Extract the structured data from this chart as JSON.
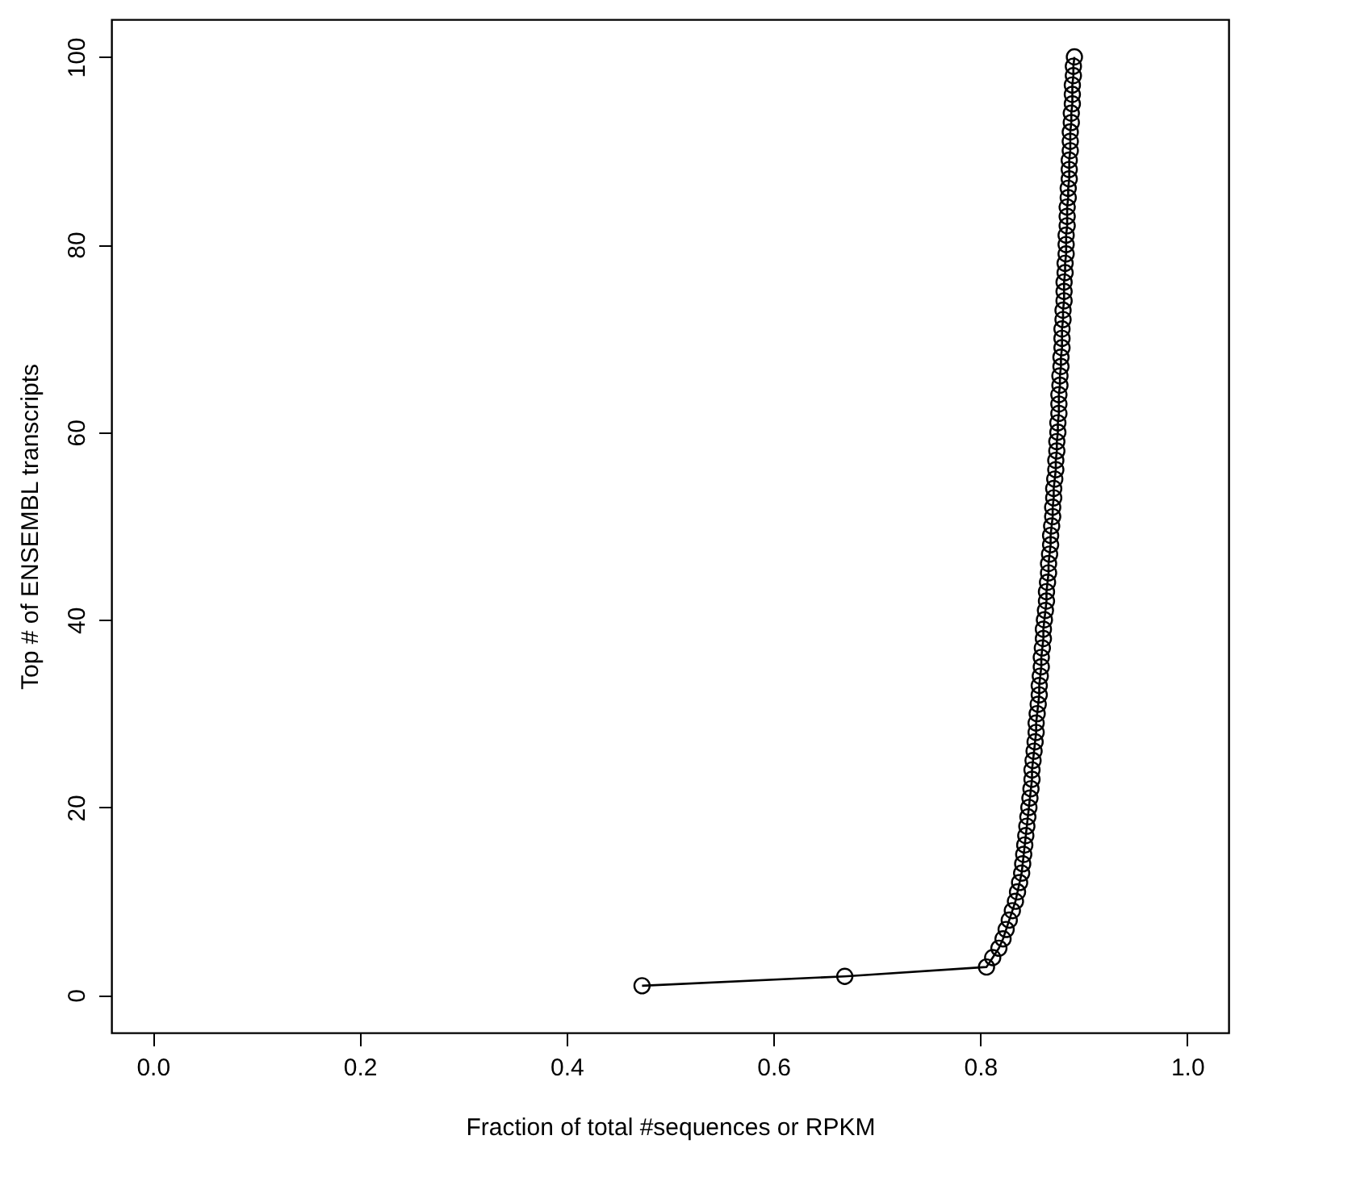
{
  "chart_data": {
    "type": "line",
    "xlabel": "Fraction of total #sequences or RPKM",
    "ylabel": "Top # of ENSEMBL transcripts",
    "marker": "circle",
    "line_style": "solid",
    "xlim": [
      -0.04,
      1.04
    ],
    "xticks": [
      {
        "value": 0,
        "label": "0.0"
      },
      {
        "value": 0.2,
        "label": "0.2"
      },
      {
        "value": 0.4,
        "label": "0.4"
      },
      {
        "value": 0.6,
        "label": "0.6"
      },
      {
        "value": 0.8,
        "label": "0.8"
      },
      {
        "value": 1,
        "label": "1.0"
      }
    ],
    "ylim": [
      -4,
      104
    ],
    "yticks": [
      0,
      20,
      40,
      60,
      80,
      100
    ],
    "series": [
      {
        "color": "#000000",
        "x": [
          0.473,
          0.669,
          0.806,
          0.812,
          0.818,
          0.822,
          0.825,
          0.828,
          0.831,
          0.834,
          0.836,
          0.838,
          0.84,
          0.841,
          0.842,
          0.843,
          0.844,
          0.845,
          0.846,
          0.847,
          0.848,
          0.849,
          0.85,
          0.85,
          0.851,
          0.852,
          0.853,
          0.854,
          0.854,
          0.855,
          0.856,
          0.857,
          0.857,
          0.858,
          0.859,
          0.859,
          0.86,
          0.861,
          0.861,
          0.862,
          0.863,
          0.864,
          0.864,
          0.865,
          0.866,
          0.866,
          0.867,
          0.868,
          0.868,
          0.869,
          0.87,
          0.87,
          0.871,
          0.871,
          0.872,
          0.873,
          0.873,
          0.874,
          0.874,
          0.875,
          0.875,
          0.876,
          0.876,
          0.876,
          0.877,
          0.877,
          0.878,
          0.878,
          0.879,
          0.879,
          0.879,
          0.88,
          0.88,
          0.881,
          0.881,
          0.881,
          0.882,
          0.882,
          0.883,
          0.883,
          0.883,
          0.884,
          0.884,
          0.884,
          0.885,
          0.885,
          0.886,
          0.886,
          0.886,
          0.887,
          0.887,
          0.887,
          0.888,
          0.888,
          0.889,
          0.889,
          0.889,
          0.89,
          0.89,
          0.891
        ],
        "values": [
          1,
          2,
          3,
          4,
          5,
          6,
          7,
          8,
          9,
          10,
          11,
          12,
          13,
          14,
          15,
          16,
          17,
          18,
          19,
          20,
          21,
          22,
          23,
          24,
          25,
          26,
          27,
          28,
          29,
          30,
          31,
          32,
          33,
          34,
          35,
          36,
          37,
          38,
          39,
          40,
          41,
          42,
          43,
          44,
          45,
          46,
          47,
          48,
          49,
          50,
          51,
          52,
          53,
          54,
          55,
          56,
          57,
          58,
          59,
          60,
          61,
          62,
          63,
          64,
          65,
          66,
          67,
          68,
          69,
          70,
          71,
          72,
          73,
          74,
          75,
          76,
          77,
          78,
          79,
          80,
          81,
          82,
          83,
          84,
          85,
          86,
          87,
          88,
          89,
          90,
          91,
          92,
          93,
          94,
          95,
          96,
          97,
          98,
          99,
          100
        ]
      }
    ]
  }
}
